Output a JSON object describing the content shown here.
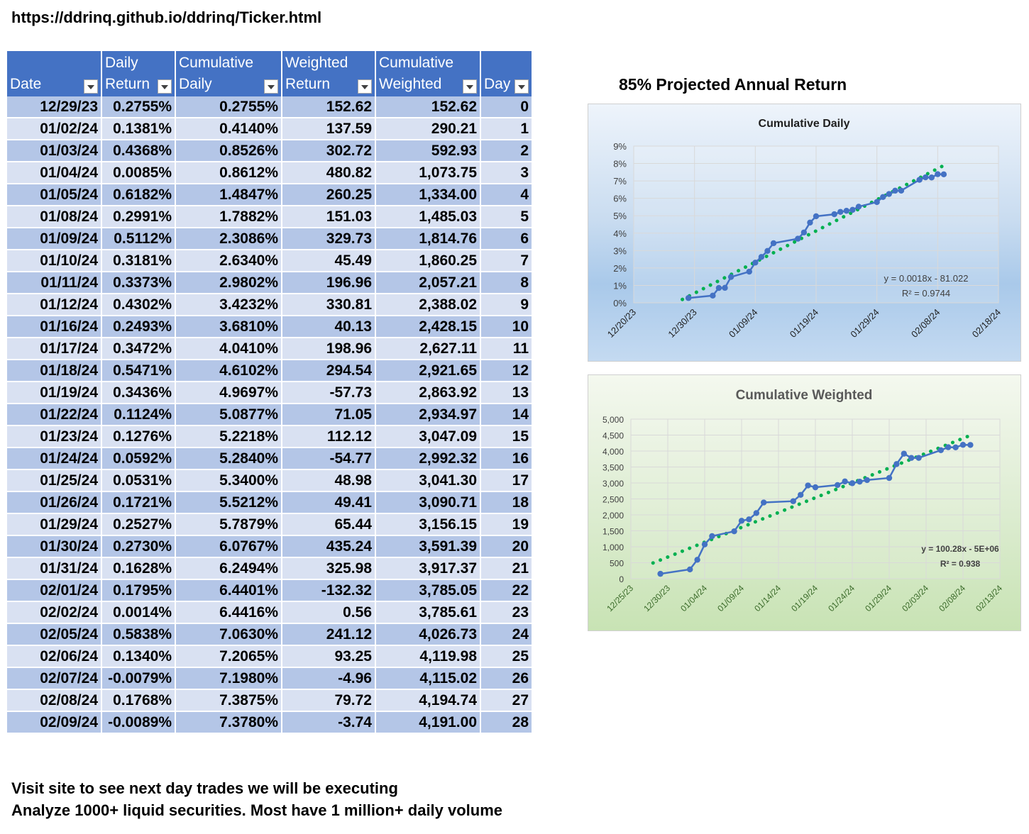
{
  "url": "https://ddrinq.github.io/ddrinq/Ticker.html",
  "projection": "85% Projected Annual Return",
  "table": {
    "headers": [
      {
        "line1": "",
        "line2": "Date"
      },
      {
        "line1": "Daily",
        "line2": "Return"
      },
      {
        "line1": "Cumulative",
        "line2": "Daily"
      },
      {
        "line1": "Weighted",
        "line2": "Return"
      },
      {
        "line1": "Cumulative",
        "line2": "Weighted"
      },
      {
        "line1": "",
        "line2": "Day"
      }
    ],
    "rows": [
      [
        "12/29/23",
        "0.2755%",
        "0.2755%",
        "152.62",
        "152.62",
        "0"
      ],
      [
        "01/02/24",
        "0.1381%",
        "0.4140%",
        "137.59",
        "290.21",
        "1"
      ],
      [
        "01/03/24",
        "0.4368%",
        "0.8526%",
        "302.72",
        "592.93",
        "2"
      ],
      [
        "01/04/24",
        "0.0085%",
        "0.8612%",
        "480.82",
        "1,073.75",
        "3"
      ],
      [
        "01/05/24",
        "0.6182%",
        "1.4847%",
        "260.25",
        "1,334.00",
        "4"
      ],
      [
        "01/08/24",
        "0.2991%",
        "1.7882%",
        "151.03",
        "1,485.03",
        "5"
      ],
      [
        "01/09/24",
        "0.5112%",
        "2.3086%",
        "329.73",
        "1,814.76",
        "6"
      ],
      [
        "01/10/24",
        "0.3181%",
        "2.6340%",
        "45.49",
        "1,860.25",
        "7"
      ],
      [
        "01/11/24",
        "0.3373%",
        "2.9802%",
        "196.96",
        "2,057.21",
        "8"
      ],
      [
        "01/12/24",
        "0.4302%",
        "3.4232%",
        "330.81",
        "2,388.02",
        "9"
      ],
      [
        "01/16/24",
        "0.2493%",
        "3.6810%",
        "40.13",
        "2,428.15",
        "10"
      ],
      [
        "01/17/24",
        "0.3472%",
        "4.0410%",
        "198.96",
        "2,627.11",
        "11"
      ],
      [
        "01/18/24",
        "0.5471%",
        "4.6102%",
        "294.54",
        "2,921.65",
        "12"
      ],
      [
        "01/19/24",
        "0.3436%",
        "4.9697%",
        "-57.73",
        "2,863.92",
        "13"
      ],
      [
        "01/22/24",
        "0.1124%",
        "5.0877%",
        "71.05",
        "2,934.97",
        "14"
      ],
      [
        "01/23/24",
        "0.1276%",
        "5.2218%",
        "112.12",
        "3,047.09",
        "15"
      ],
      [
        "01/24/24",
        "0.0592%",
        "5.2840%",
        "-54.77",
        "2,992.32",
        "16"
      ],
      [
        "01/25/24",
        "0.0531%",
        "5.3400%",
        "48.98",
        "3,041.30",
        "17"
      ],
      [
        "01/26/24",
        "0.1721%",
        "5.5212%",
        "49.41",
        "3,090.71",
        "18"
      ],
      [
        "01/29/24",
        "0.2527%",
        "5.7879%",
        "65.44",
        "3,156.15",
        "19"
      ],
      [
        "01/30/24",
        "0.2730%",
        "6.0767%",
        "435.24",
        "3,591.39",
        "20"
      ],
      [
        "01/31/24",
        "0.1628%",
        "6.2494%",
        "325.98",
        "3,917.37",
        "21"
      ],
      [
        "02/01/24",
        "0.1795%",
        "6.4401%",
        "-132.32",
        "3,785.05",
        "22"
      ],
      [
        "02/02/24",
        "0.0014%",
        "6.4416%",
        "0.56",
        "3,785.61",
        "23"
      ],
      [
        "02/05/24",
        "0.5838%",
        "7.0630%",
        "241.12",
        "4,026.73",
        "24"
      ],
      [
        "02/06/24",
        "0.1340%",
        "7.2065%",
        "93.25",
        "4,119.98",
        "25"
      ],
      [
        "02/07/24",
        "-0.0079%",
        "7.1980%",
        "-4.96",
        "4,115.02",
        "26"
      ],
      [
        "02/08/24",
        "0.1768%",
        "7.3875%",
        "79.72",
        "4,194.74",
        "27"
      ],
      [
        "02/09/24",
        "-0.0089%",
        "7.3780%",
        "-3.74",
        "4,191.00",
        "28"
      ]
    ]
  },
  "footer": {
    "line1": "Visit site to see next day trades we will be executing",
    "line2": "Analyze 1000+ liquid securities.  Most have 1 million+ daily volume"
  },
  "colors": {
    "series": "#4472c4",
    "trend": "#00b050",
    "header": "#4472c4"
  },
  "chart_data": [
    {
      "type": "line",
      "title": "Cumulative Daily",
      "x": [
        "12/29/23",
        "01/02/24",
        "01/03/24",
        "01/04/24",
        "01/05/24",
        "01/08/24",
        "01/09/24",
        "01/10/24",
        "01/11/24",
        "01/12/24",
        "01/16/24",
        "01/17/24",
        "01/18/24",
        "01/19/24",
        "01/22/24",
        "01/23/24",
        "01/24/24",
        "01/25/24",
        "01/26/24",
        "01/29/24",
        "01/30/24",
        "01/31/24",
        "02/01/24",
        "02/02/24",
        "02/05/24",
        "02/06/24",
        "02/07/24",
        "02/08/24",
        "02/09/24"
      ],
      "values": [
        0.2755,
        0.414,
        0.8526,
        0.8612,
        1.4847,
        1.7882,
        2.3086,
        2.634,
        2.9802,
        3.4232,
        3.681,
        4.041,
        4.6102,
        4.9697,
        5.0877,
        5.2218,
        5.284,
        5.34,
        5.5212,
        5.7879,
        6.0767,
        6.2494,
        6.4401,
        6.4416,
        7.063,
        7.2065,
        7.198,
        7.3875,
        7.378
      ],
      "x_tick_labels": [
        "12/20/23",
        "12/30/23",
        "01/09/24",
        "01/19/24",
        "01/29/24",
        "02/08/24",
        "02/18/24"
      ],
      "x_ticks": [
        "12/20/23",
        "12/30/23",
        "01/09/24",
        "01/19/24",
        "01/29/24",
        "02/08/24",
        "02/18/24"
      ],
      "y_tick_labels": [
        "0%",
        "1%",
        "2%",
        "3%",
        "4%",
        "5%",
        "6%",
        "7%",
        "8%",
        "9%"
      ],
      "ylim": [
        0,
        9
      ],
      "grid": true,
      "trendline": {
        "type": "linear",
        "equation": "y = 0.0018x - 81.022",
        "r2": "R² = 0.9744"
      }
    },
    {
      "type": "line",
      "title": "Cumulative Weighted",
      "x": [
        "12/29/23",
        "01/02/24",
        "01/03/24",
        "01/04/24",
        "01/05/24",
        "01/08/24",
        "01/09/24",
        "01/10/24",
        "01/11/24",
        "01/12/24",
        "01/16/24",
        "01/17/24",
        "01/18/24",
        "01/19/24",
        "01/22/24",
        "01/23/24",
        "01/24/24",
        "01/25/24",
        "01/26/24",
        "01/29/24",
        "01/30/24",
        "01/31/24",
        "02/01/24",
        "02/02/24",
        "02/05/24",
        "02/06/24",
        "02/07/24",
        "02/08/24",
        "02/09/24"
      ],
      "values": [
        152.62,
        290.21,
        592.93,
        1073.75,
        1334.0,
        1485.03,
        1814.76,
        1860.25,
        2057.21,
        2388.02,
        2428.15,
        2627.11,
        2921.65,
        2863.92,
        2934.97,
        3047.09,
        2992.32,
        3041.3,
        3090.71,
        3156.15,
        3591.39,
        3917.37,
        3785.05,
        3785.61,
        4026.73,
        4119.98,
        4115.02,
        4194.74,
        4191.0
      ],
      "x_tick_labels": [
        "12/25/23",
        "12/30/23",
        "01/04/24",
        "01/09/24",
        "01/14/24",
        "01/19/24",
        "01/24/24",
        "01/29/24",
        "02/03/24",
        "02/08/24",
        "02/13/24"
      ],
      "x_ticks": [
        "12/25/23",
        "12/30/23",
        "01/04/24",
        "01/09/24",
        "01/14/24",
        "01/19/24",
        "01/24/24",
        "01/29/24",
        "02/03/24",
        "02/08/24",
        "02/13/24"
      ],
      "y_tick_labels": [
        "0",
        "500",
        "1,000",
        "1,500",
        "2,000",
        "2,500",
        "3,000",
        "3,500",
        "4,000",
        "4,500",
        "5,000"
      ],
      "ylim": [
        0,
        5000
      ],
      "grid": true,
      "trendline": {
        "type": "linear",
        "equation": "y = 100.28x - 5E+06",
        "r2": "R² = 0.938"
      }
    }
  ]
}
